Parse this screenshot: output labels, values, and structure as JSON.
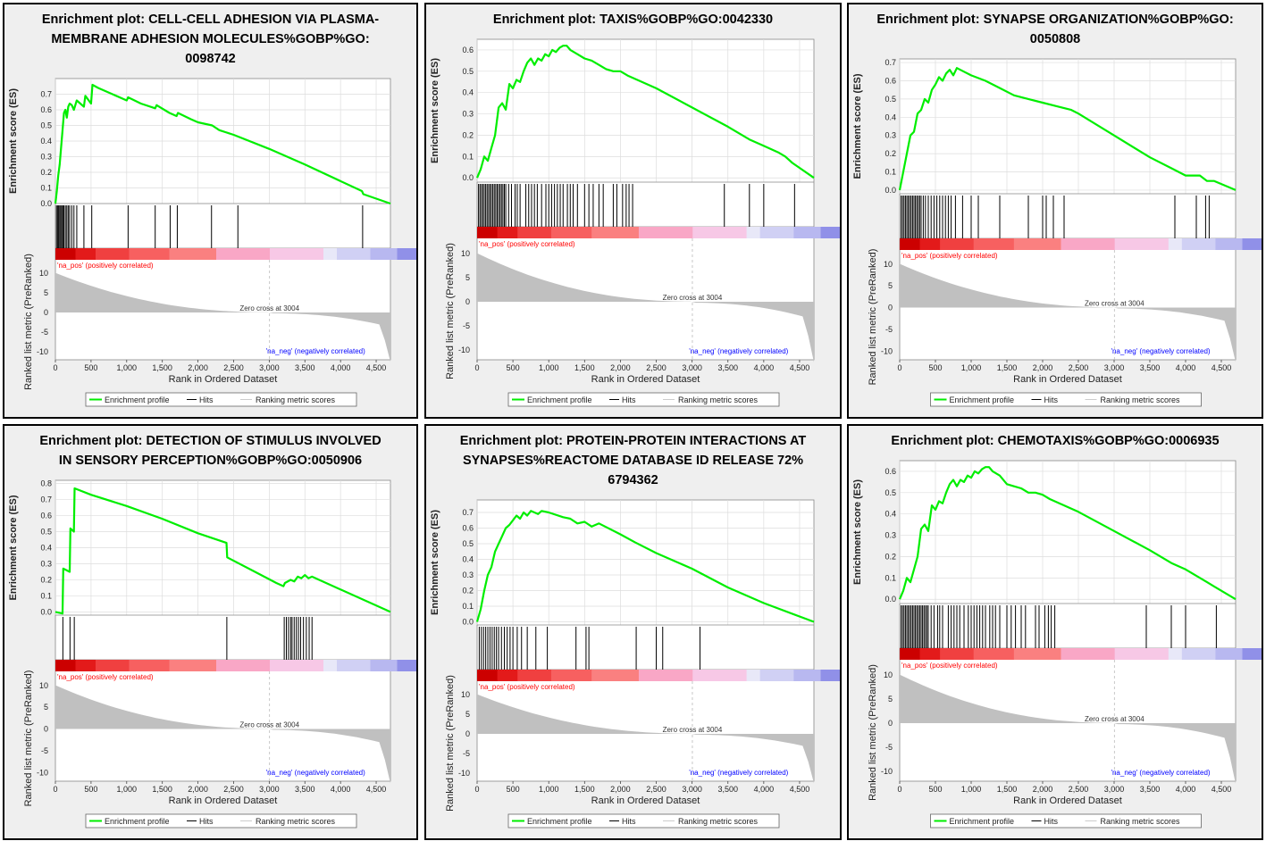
{
  "legend": {
    "profile": "Enrichment profile",
    "hits": "Hits",
    "metric": "Ranking metric scores"
  },
  "axes": {
    "es_label": "Enrichment score (ES)",
    "metric_label": "Ranked list metric (PreRanked)",
    "x_label": "Rank in Ordered Dataset"
  },
  "annotations": {
    "pos": "'na_pos' (positively correlated)",
    "neg": "'na_neg' (negatively correlated)",
    "zero_cross": "Zero cross at 3004"
  },
  "colors": {
    "profile": "#00ee00",
    "hits": "#000000",
    "metric": "#c0c0c0",
    "pos": "#ff0000",
    "neg": "#0000ff"
  },
  "chart_data": [
    {
      "type": "line",
      "title_lines": [
        "Enrichment plot: CELL-CELL ADHESION VIA PLASMA-",
        "MEMBRANE ADHESION MOLECULES%GOBP%GO:",
        "0098742"
      ],
      "xlim": [
        0,
        4700
      ],
      "ylim": [
        0,
        0.8
      ],
      "es_ticks": [
        0.0,
        0.1,
        0.2,
        0.3,
        0.4,
        0.5,
        0.6,
        0.7
      ],
      "x_ticks": [
        0,
        500,
        1000,
        1500,
        2000,
        2500,
        3000,
        3500,
        4000,
        4500
      ],
      "metric_ticks": [
        10,
        5,
        0,
        -5,
        -10
      ],
      "series": [
        {
          "name": "Enrichment profile",
          "x": [
            0,
            20,
            40,
            60,
            80,
            100,
            120,
            140,
            160,
            180,
            200,
            230,
            260,
            300,
            400,
            420,
            500,
            520,
            600,
            1000,
            1020,
            1200,
            1400,
            1420,
            1600,
            1700,
            1720,
            1900,
            2000,
            2200,
            2300,
            2500,
            3000,
            3500,
            4300,
            4320,
            4700
          ],
          "y": [
            0.0,
            0.08,
            0.18,
            0.25,
            0.36,
            0.47,
            0.58,
            0.6,
            0.55,
            0.62,
            0.64,
            0.63,
            0.6,
            0.66,
            0.62,
            0.69,
            0.64,
            0.76,
            0.74,
            0.66,
            0.68,
            0.64,
            0.61,
            0.63,
            0.58,
            0.56,
            0.58,
            0.54,
            0.52,
            0.5,
            0.47,
            0.44,
            0.35,
            0.25,
            0.08,
            0.06,
            0.0
          ]
        },
        {
          "name": "Hits",
          "x": [
            15,
            30,
            45,
            60,
            75,
            90,
            105,
            120,
            140,
            160,
            180,
            200,
            230,
            260,
            300,
            400,
            510,
            1020,
            1400,
            1610,
            1710,
            2190,
            2560,
            4310
          ]
        }
      ]
    },
    {
      "type": "line",
      "title_lines": [
        "Enrichment plot: TAXIS%GOBP%GO:0042330"
      ],
      "xlim": [
        0,
        4700
      ],
      "ylim": [
        -0.02,
        0.65
      ],
      "es_ticks": [
        0.0,
        0.1,
        0.2,
        0.3,
        0.4,
        0.5,
        0.6
      ],
      "x_ticks": [
        0,
        500,
        1000,
        1500,
        2000,
        2500,
        3000,
        3500,
        4000,
        4500
      ],
      "metric_ticks": [
        10,
        5,
        0,
        -5,
        -10
      ],
      "series": [
        {
          "name": "Enrichment profile",
          "x": [
            0,
            50,
            100,
            150,
            200,
            250,
            300,
            350,
            400,
            450,
            500,
            550,
            600,
            650,
            700,
            750,
            800,
            850,
            900,
            950,
            1000,
            1050,
            1100,
            1150,
            1200,
            1250,
            1300,
            1400,
            1500,
            1600,
            1700,
            1800,
            1900,
            2000,
            2100,
            2500,
            3000,
            3500,
            3800,
            4000,
            4200,
            4300,
            4400,
            4700
          ],
          "y": [
            0.0,
            0.04,
            0.1,
            0.08,
            0.14,
            0.2,
            0.33,
            0.35,
            0.32,
            0.44,
            0.42,
            0.46,
            0.45,
            0.5,
            0.54,
            0.56,
            0.53,
            0.56,
            0.55,
            0.58,
            0.57,
            0.6,
            0.59,
            0.61,
            0.62,
            0.62,
            0.6,
            0.58,
            0.56,
            0.55,
            0.53,
            0.51,
            0.5,
            0.5,
            0.48,
            0.42,
            0.33,
            0.24,
            0.18,
            0.15,
            0.12,
            0.1,
            0.07,
            0.0
          ]
        },
        {
          "name": "Hits",
          "x": [
            20,
            40,
            60,
            80,
            100,
            120,
            140,
            160,
            180,
            200,
            220,
            240,
            260,
            280,
            300,
            320,
            340,
            360,
            380,
            400,
            440,
            480,
            530,
            560,
            600,
            680,
            720,
            760,
            800,
            840,
            900,
            960,
            1000,
            1040,
            1080,
            1120,
            1160,
            1200,
            1260,
            1300,
            1340,
            1400,
            1500,
            1560,
            1620,
            1700,
            1760,
            1900,
            1950,
            2030,
            2080,
            2120,
            2170,
            3450,
            3800,
            4000,
            4430
          ]
        }
      ]
    },
    {
      "type": "line",
      "title_lines": [
        "Enrichment plot: SYNAPSE ORGANIZATION%GOBP%GO:",
        "0050808"
      ],
      "xlim": [
        0,
        4700
      ],
      "ylim": [
        -0.02,
        0.72
      ],
      "es_ticks": [
        0.0,
        0.1,
        0.2,
        0.3,
        0.4,
        0.5,
        0.6,
        0.7
      ],
      "x_ticks": [
        0,
        500,
        1000,
        1500,
        2000,
        2500,
        3000,
        3500,
        4000,
        4500
      ],
      "metric_ticks": [
        10,
        5,
        0,
        -5,
        -10
      ],
      "series": [
        {
          "name": "Enrichment profile",
          "x": [
            0,
            50,
            100,
            150,
            200,
            250,
            300,
            350,
            400,
            450,
            500,
            550,
            600,
            650,
            700,
            750,
            800,
            900,
            1000,
            1200,
            1400,
            1600,
            1800,
            2000,
            2200,
            2400,
            2500,
            3000,
            3500,
            3800,
            4000,
            4200,
            4300,
            4400,
            4700
          ],
          "y": [
            0.0,
            0.1,
            0.2,
            0.3,
            0.32,
            0.42,
            0.44,
            0.5,
            0.48,
            0.55,
            0.58,
            0.62,
            0.6,
            0.64,
            0.66,
            0.63,
            0.67,
            0.65,
            0.63,
            0.6,
            0.56,
            0.52,
            0.5,
            0.48,
            0.46,
            0.44,
            0.42,
            0.3,
            0.18,
            0.12,
            0.08,
            0.08,
            0.05,
            0.05,
            0.0
          ]
        },
        {
          "name": "Hits",
          "x": [
            20,
            40,
            60,
            80,
            100,
            120,
            140,
            160,
            180,
            200,
            220,
            240,
            260,
            280,
            300,
            330,
            360,
            400,
            440,
            480,
            520,
            560,
            600,
            640,
            680,
            720,
            780,
            880,
            1000,
            1100,
            1400,
            1800,
            2000,
            2050,
            2150,
            2300,
            3850,
            4150,
            4280,
            4330
          ]
        }
      ]
    },
    {
      "type": "line",
      "title_lines": [
        "Enrichment plot: DETECTION OF STIMULUS INVOLVED",
        "IN SENSORY PERCEPTION%GOBP%GO:0050906"
      ],
      "xlim": [
        0,
        4700
      ],
      "ylim": [
        -0.02,
        0.82
      ],
      "es_ticks": [
        0.0,
        0.1,
        0.2,
        0.3,
        0.4,
        0.5,
        0.6,
        0.7,
        0.8
      ],
      "x_ticks": [
        0,
        500,
        1000,
        1500,
        2000,
        2500,
        3000,
        3500,
        4000,
        4500
      ],
      "metric_ticks": [
        10,
        5,
        0,
        -5,
        -10
      ],
      "series": [
        {
          "name": "Enrichment profile",
          "x": [
            0,
            100,
            110,
            200,
            210,
            260,
            270,
            500,
            1000,
            1500,
            2000,
            2400,
            2410,
            2800,
            3100,
            3200,
            3220,
            3300,
            3350,
            3400,
            3450,
            3500,
            3550,
            3600,
            4700
          ],
          "y": [
            0.0,
            -0.01,
            0.27,
            0.25,
            0.52,
            0.5,
            0.77,
            0.73,
            0.66,
            0.58,
            0.49,
            0.43,
            0.34,
            0.25,
            0.18,
            0.16,
            0.18,
            0.2,
            0.19,
            0.22,
            0.21,
            0.23,
            0.21,
            0.22,
            0.0
          ]
        },
        {
          "name": "Hits",
          "x": [
            105,
            205,
            265,
            2405,
            3210,
            3240,
            3270,
            3300,
            3320,
            3350,
            3380,
            3410,
            3440,
            3480,
            3520,
            3560,
            3600
          ]
        }
      ]
    },
    {
      "type": "line",
      "title_lines": [
        "Enrichment plot: PROTEIN-PROTEIN INTERACTIONS AT",
        "SYNAPSES%REACTOME DATABASE ID RELEASE 72%",
        "6794362"
      ],
      "xlim": [
        0,
        4700
      ],
      "ylim": [
        -0.02,
        0.78
      ],
      "es_ticks": [
        0.0,
        0.1,
        0.2,
        0.3,
        0.4,
        0.5,
        0.6,
        0.7
      ],
      "x_ticks": [
        0,
        500,
        1000,
        1500,
        2000,
        2500,
        3000,
        3500,
        4000,
        4500
      ],
      "metric_ticks": [
        10,
        5,
        0,
        -5,
        -10
      ],
      "series": [
        {
          "name": "Enrichment profile",
          "x": [
            0,
            50,
            100,
            150,
            200,
            250,
            300,
            350,
            400,
            450,
            500,
            550,
            600,
            650,
            700,
            750,
            800,
            850,
            900,
            1000,
            1200,
            1300,
            1400,
            1500,
            1600,
            1700,
            2000,
            2200,
            2500,
            3000,
            3500,
            4000,
            4700
          ],
          "y": [
            0.0,
            0.08,
            0.2,
            0.3,
            0.35,
            0.45,
            0.5,
            0.55,
            0.6,
            0.62,
            0.65,
            0.68,
            0.66,
            0.7,
            0.68,
            0.71,
            0.7,
            0.69,
            0.71,
            0.7,
            0.67,
            0.66,
            0.63,
            0.64,
            0.61,
            0.63,
            0.56,
            0.51,
            0.44,
            0.34,
            0.22,
            0.12,
            0.0
          ]
        },
        {
          "name": "Hits",
          "x": [
            30,
            60,
            90,
            120,
            150,
            180,
            210,
            240,
            270,
            300,
            340,
            380,
            420,
            460,
            500,
            560,
            620,
            700,
            820,
            980,
            1380,
            1520,
            1560,
            2220,
            2500,
            2590,
            3110
          ]
        }
      ]
    },
    {
      "type": "line",
      "title_lines": [
        "Enrichment plot: CHEMOTAXIS%GOBP%GO:0006935"
      ],
      "xlim": [
        0,
        4700
      ],
      "ylim": [
        -0.02,
        0.65
      ],
      "es_ticks": [
        0.0,
        0.1,
        0.2,
        0.3,
        0.4,
        0.5,
        0.6
      ],
      "x_ticks": [
        0,
        500,
        1000,
        1500,
        2000,
        2500,
        3000,
        3500,
        4000,
        4500
      ],
      "metric_ticks": [
        10,
        5,
        0,
        -5,
        -10
      ],
      "series": [
        {
          "name": "Enrichment profile",
          "x": [
            0,
            50,
            100,
            150,
            200,
            250,
            300,
            350,
            400,
            450,
            500,
            550,
            600,
            650,
            700,
            750,
            800,
            850,
            900,
            950,
            1000,
            1050,
            1100,
            1150,
            1200,
            1250,
            1300,
            1400,
            1500,
            1600,
            1700,
            1800,
            1900,
            2000,
            2100,
            2500,
            3000,
            3500,
            3800,
            4000,
            4200,
            4300,
            4400,
            4700
          ],
          "y": [
            0.0,
            0.04,
            0.1,
            0.08,
            0.14,
            0.2,
            0.33,
            0.35,
            0.32,
            0.44,
            0.42,
            0.46,
            0.45,
            0.5,
            0.54,
            0.56,
            0.53,
            0.56,
            0.55,
            0.58,
            0.57,
            0.6,
            0.59,
            0.61,
            0.62,
            0.62,
            0.6,
            0.58,
            0.54,
            0.53,
            0.52,
            0.5,
            0.5,
            0.49,
            0.47,
            0.41,
            0.32,
            0.23,
            0.17,
            0.14,
            0.1,
            0.08,
            0.06,
            0.0
          ]
        },
        {
          "name": "Hits",
          "x": [
            20,
            40,
            60,
            80,
            100,
            120,
            140,
            160,
            180,
            200,
            220,
            240,
            260,
            280,
            300,
            320,
            340,
            360,
            380,
            400,
            440,
            480,
            530,
            560,
            600,
            680,
            720,
            760,
            800,
            840,
            900,
            960,
            1000,
            1040,
            1080,
            1120,
            1160,
            1200,
            1260,
            1300,
            1340,
            1400,
            1500,
            1560,
            1620,
            1700,
            1760,
            1900,
            1950,
            2030,
            2080,
            2120,
            2170,
            3450,
            3800,
            4000,
            4430
          ]
        }
      ]
    }
  ]
}
